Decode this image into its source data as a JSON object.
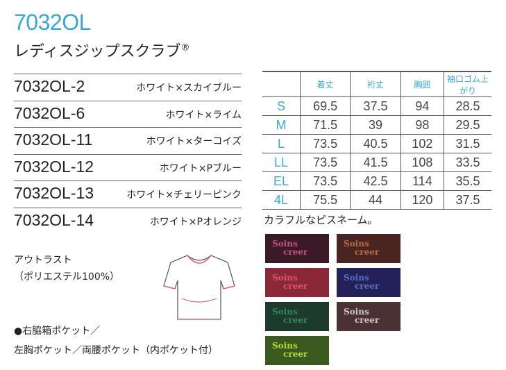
{
  "header": {
    "code": "7032OL",
    "name": "レディスジップスクラブ",
    "mark": "®"
  },
  "variants": [
    {
      "code": "7032OL-2",
      "color": "ホワイト×スカイブルー"
    },
    {
      "code": "7032OL-6",
      "color": "ホワイト×ライム"
    },
    {
      "code": "7032OL-11",
      "color": "ホワイト×ターコイズ"
    },
    {
      "code": "7032OL-12",
      "color": "ホワイト×Pブルー"
    },
    {
      "code": "7032OL-13",
      "color": "ホワイト×チェリーピンク"
    },
    {
      "code": "7032OL-14",
      "color": "ホワイト×Pオレンジ"
    }
  ],
  "material": {
    "line1": "アウトラスト",
    "line2": "（ポリエステル100%）"
  },
  "features": {
    "line1": "●右脇箱ポケット／",
    "line2": "左胸ポケット／両腰ポケット（内ポケット付）"
  },
  "size_table": {
    "headers": [
      "",
      "着丈",
      "裄丈",
      "胸囲",
      "袖口ゴム上がり"
    ],
    "rows": [
      [
        "S",
        "69.5",
        "37.5",
        "94",
        "28.5"
      ],
      [
        "M",
        "71.5",
        "39",
        "98",
        "29.5"
      ],
      [
        "L",
        "73.5",
        "40.5",
        "102",
        "31.5"
      ],
      [
        "LL",
        "73.5",
        "41.5",
        "108",
        "33.5"
      ],
      [
        "EL",
        "73.5",
        "42.5",
        "114",
        "35.5"
      ],
      [
        "4L",
        "75.5",
        "44",
        "120",
        "37.5"
      ]
    ]
  },
  "name_patches": {
    "title": "カラフルなピスネーム。",
    "logo_l1": "Soins",
    "logo_l2": "creer",
    "colors": [
      {
        "bg": "#3a1a26",
        "fg": "#c8507a"
      },
      {
        "bg": "#4a2420",
        "fg": "#b86a48"
      },
      {
        "bg": "#8a2838",
        "fg": "#e05070"
      },
      {
        "bg": "#24205a",
        "fg": "#5a70c0"
      },
      {
        "bg": "#1e3a2c",
        "fg": "#2e8a5a"
      },
      {
        "bg": "#4a3234",
        "fg": "#d0c8c8"
      },
      {
        "bg": "#3a5a20",
        "fg": "#b8d830"
      }
    ]
  },
  "accent": "#3aa6d6"
}
